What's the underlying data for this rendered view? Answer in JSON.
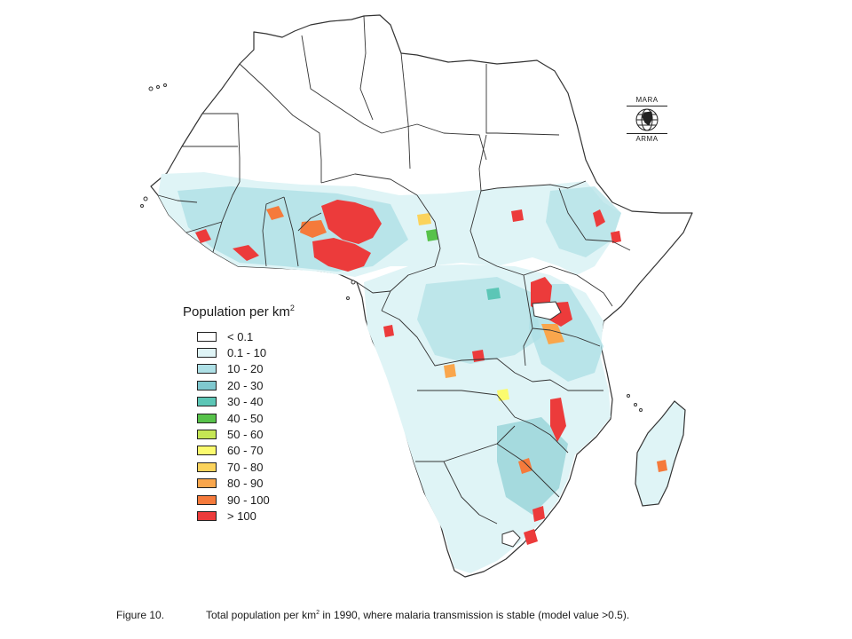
{
  "legend": {
    "title": "Population per km",
    "title_sup": "2",
    "items": [
      {
        "label": "< 0.1",
        "color": "#ffffff"
      },
      {
        "label": "0.1 - 10",
        "color": "#dff4f6"
      },
      {
        "label": "10 - 20",
        "color": "#aee0e6"
      },
      {
        "label": "20 - 30",
        "color": "#7fc8cf"
      },
      {
        "label": "30 - 40",
        "color": "#5cc6b6"
      },
      {
        "label": "40 - 50",
        "color": "#57c24a"
      },
      {
        "label": "50 - 60",
        "color": "#c5e654"
      },
      {
        "label": "60 - 70",
        "color": "#fbfb6e"
      },
      {
        "label": "70 - 80",
        "color": "#fbd35c"
      },
      {
        "label": "80 - 90",
        "color": "#f9a64c"
      },
      {
        "label": "90 - 100",
        "color": "#f57a3b"
      },
      {
        "label": "> 100",
        "color": "#ec3b3b"
      }
    ]
  },
  "logo": {
    "top": "MARA",
    "bottom": "ARMA"
  },
  "caption": {
    "label": "Figure 10.",
    "text_before": "Total population per km",
    "text_sup": "2",
    "text_after": " in 1990, where malaria transmission is stable (model value >0.5)."
  }
}
